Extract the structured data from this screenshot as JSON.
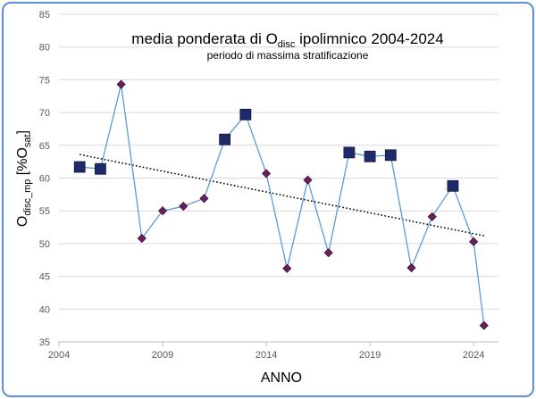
{
  "chart_data": {
    "type": "scatter",
    "title": {
      "prefix": "media ponderata di O",
      "sub": "disc",
      "suffix": " ipolimnico 2004-2024"
    },
    "subtitle": "periodo di massima stratificazione",
    "xlabel": "ANNO",
    "ylabel": {
      "main": "O",
      "sub1": "disc_mp",
      "mid": " [%O",
      "sub2": "sat",
      "end": "]"
    },
    "xlim": [
      2004,
      2025.2
    ],
    "ylim": [
      35,
      85
    ],
    "xticks": [
      "2004",
      "2009",
      "2014",
      "2019",
      "2024"
    ],
    "yticks": [
      "35",
      "40",
      "45",
      "50",
      "55",
      "60",
      "65",
      "70",
      "75",
      "80",
      "85"
    ],
    "grid": "horizontal",
    "series": [
      {
        "marker": "mixed",
        "color": "#5b9bd5",
        "points": [
          {
            "x": 2005,
            "y": 61.7,
            "m": "square"
          },
          {
            "x": 2006,
            "y": 61.4,
            "m": "square"
          },
          {
            "x": 2007,
            "y": 74.3,
            "m": "diamond"
          },
          {
            "x": 2008,
            "y": 50.8,
            "m": "diamond"
          },
          {
            "x": 2009,
            "y": 55.0,
            "m": "diamond"
          },
          {
            "x": 2010,
            "y": 55.7,
            "m": "diamond"
          },
          {
            "x": 2011,
            "y": 56.9,
            "m": "diamond"
          },
          {
            "x": 2012,
            "y": 65.9,
            "m": "square"
          },
          {
            "x": 2013,
            "y": 69.7,
            "m": "square"
          },
          {
            "x": 2014,
            "y": 60.7,
            "m": "diamond"
          },
          {
            "x": 2015,
            "y": 46.2,
            "m": "diamond"
          },
          {
            "x": 2016,
            "y": 59.7,
            "m": "diamond"
          },
          {
            "x": 2017,
            "y": 48.6,
            "m": "diamond"
          },
          {
            "x": 2018,
            "y": 63.9,
            "m": "square"
          },
          {
            "x": 2019,
            "y": 63.3,
            "m": "square"
          },
          {
            "x": 2020,
            "y": 63.5,
            "m": "square"
          },
          {
            "x": 2021,
            "y": 46.3,
            "m": "diamond"
          },
          {
            "x": 2022,
            "y": 54.1,
            "m": "diamond"
          },
          {
            "x": 2023,
            "y": 58.8,
            "m": "square"
          },
          {
            "x": 2024,
            "y": 50.3,
            "m": "diamond"
          },
          {
            "x": 2024.5,
            "y": 37.5,
            "m": "diamond"
          }
        ]
      }
    ],
    "trendline": {
      "style": "dotted",
      "from": {
        "x": 2005,
        "y": 63.6
      },
      "to": {
        "x": 2024.5,
        "y": 51.2
      }
    },
    "colors": {
      "line": "#5b9bd5",
      "square_marker": "#1f2a6b",
      "diamond_marker": "#6b1f5e",
      "grid": "#d9d9d9",
      "frame": "#5b8fd6",
      "trend": "#000000"
    }
  }
}
